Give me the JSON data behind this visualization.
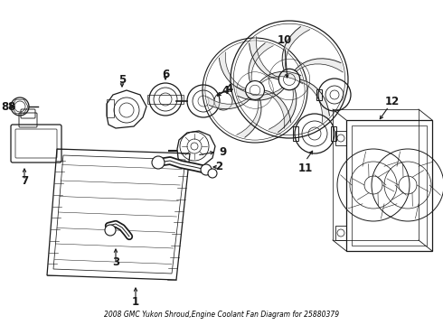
{
  "title": "2008 GMC Yukon Shroud,Engine Coolant Fan Diagram for 25880379",
  "bg_color": "#ffffff",
  "line_color": "#1a1a1a",
  "label_color": "#000000",
  "fig_w": 4.9,
  "fig_h": 3.6,
  "dpi": 100,
  "lw": 0.9
}
